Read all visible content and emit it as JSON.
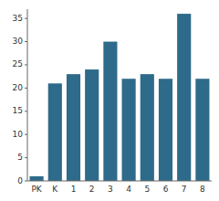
{
  "chart_data": {
    "type": "bar",
    "categories": [
      "PK",
      "K",
      "1",
      "2",
      "3",
      "4",
      "5",
      "6",
      "7",
      "8"
    ],
    "values": [
      1,
      21,
      23,
      24,
      30,
      22,
      23,
      22,
      36,
      22
    ],
    "color": "#2e6b8a",
    "ylim": [
      0,
      37
    ],
    "yticks": [
      0,
      5,
      10,
      15,
      20,
      25,
      30,
      35
    ],
    "grid": false
  }
}
